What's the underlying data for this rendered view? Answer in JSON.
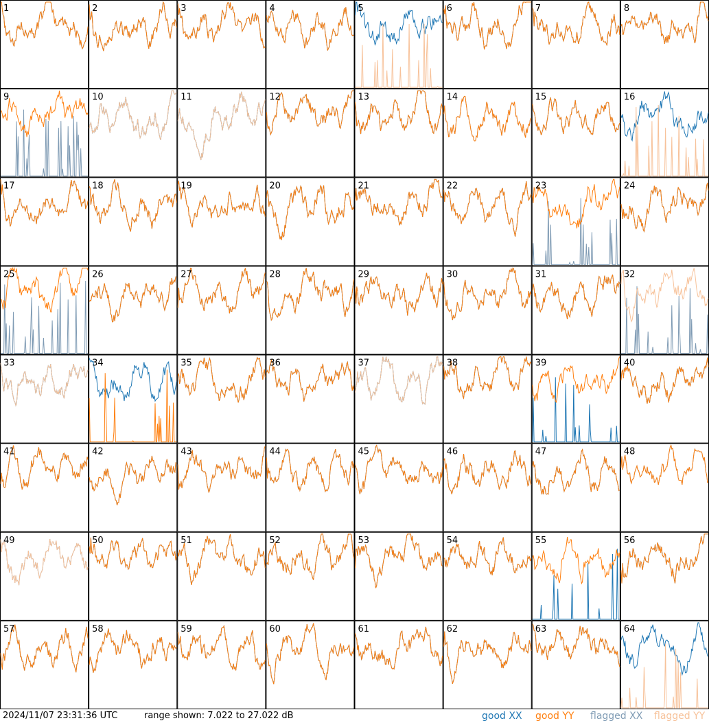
{
  "footer": {
    "timestamp": "2024/11/07 23:31:36 UTC",
    "range": "range shown: 7.022 to 27.022 dB"
  },
  "legend": [
    {
      "label": "good XX",
      "color": "#1f77b4"
    },
    {
      "label": "good YY",
      "color": "#ff7f0e"
    },
    {
      "label": "flagged XX",
      "color": "#7f9bb4"
    },
    {
      "label": "flagged YY",
      "color": "#f7c29a"
    }
  ],
  "chart_data": {
    "type": "line",
    "grid": {
      "rows": 8,
      "cols": 8
    },
    "ylim": [
      7.022,
      27.022
    ],
    "yunit": "dB",
    "panel_labels": [
      "1",
      "2",
      "3",
      "4",
      "5",
      "6",
      "7",
      "8",
      "9",
      "10",
      "11",
      "12",
      "13",
      "14",
      "15",
      "16",
      "17",
      "18",
      "19",
      "20",
      "21",
      "22",
      "23",
      "24",
      "25",
      "26",
      "27",
      "28",
      "29",
      "30",
      "31",
      "32",
      "33",
      "34",
      "35",
      "36",
      "37",
      "38",
      "39",
      "40",
      "41",
      "42",
      "43",
      "44",
      "45",
      "46",
      "47",
      "48",
      "49",
      "50",
      "51",
      "52",
      "53",
      "54",
      "55",
      "56",
      "57",
      "58",
      "59",
      "60",
      "61",
      "62",
      "63",
      "64"
    ],
    "series_styles": {
      "good_xx": "#1f77b4",
      "good_yy": "#ff7f0e",
      "flagged_xx": "#7f9bb4",
      "flagged_yy": "#f7c29a"
    },
    "panels": {
      "5": {
        "yy": "flagged-spikes"
      },
      "9": {
        "xx": "flagged-spikes"
      },
      "10": {
        "yy": "flagged"
      },
      "11": {
        "yy": "flagged"
      },
      "14": {
        "xx": "flagged"
      },
      "16": {
        "yy": "flagged-spikes"
      },
      "23": {
        "xx": "flagged-spikes"
      },
      "25": {
        "xx": "flagged-spikes"
      },
      "32": {
        "yy": "flagged",
        "xx": "flagged-spikes"
      },
      "33": {
        "yy": "flagged"
      },
      "34": {
        "yy": "spikes"
      },
      "37": {
        "yy": "flagged"
      },
      "39": {
        "xx": "spikes"
      },
      "48": {
        "xx": "flagged"
      },
      "49": {
        "xx": "flagged",
        "yy": "flagged"
      },
      "55": {
        "xx": "spikes"
      },
      "64": {
        "yy": "flagged-spikes"
      }
    }
  }
}
